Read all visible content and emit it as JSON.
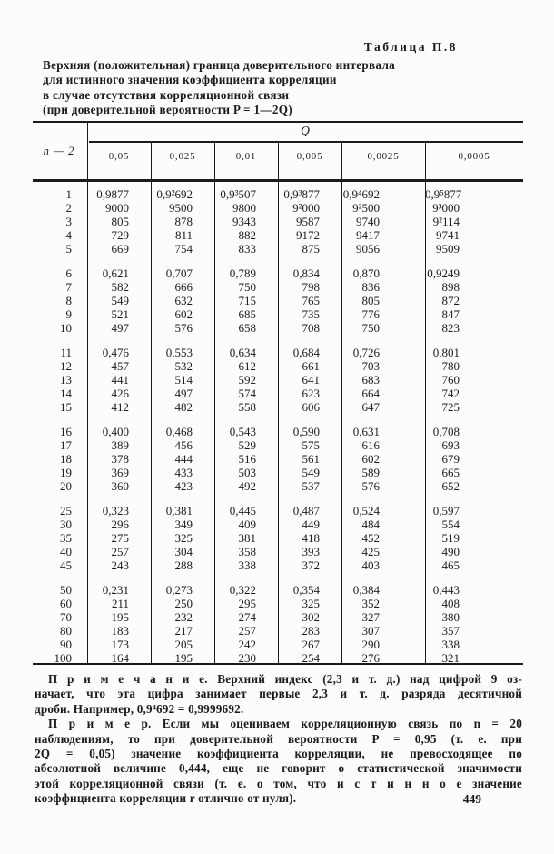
{
  "document": {
    "table_label": "Таблица П.8",
    "caption_lines": [
      "Верхняя (положительная) граница доверительного интервала",
      "для истинного значения коэффициента корреляции",
      "в случае отсутствия корреляционной связи",
      "(при доверительной вероятности P = 1—2Q)"
    ],
    "page_number": "449"
  },
  "table": {
    "row_header_label": "n — 2",
    "q_header": "Q",
    "column_headers": [
      "0,05",
      "0,025",
      "0,01",
      "0,005",
      "0,0025",
      "0,0005"
    ],
    "row_groups": [
      {
        "rows": [
          [
            "1",
            "0,9877",
            "0,9²692",
            "0,9³507",
            "0,9³877",
            "0,9⁴692",
            "0,9⁵877"
          ],
          [
            "2",
            "9000",
            "9500",
            "9800",
            "9²000",
            "9²500",
            "9³000"
          ],
          [
            "3",
            "805",
            "878",
            "9343",
            "9587",
            "9740",
            "9²114"
          ],
          [
            "4",
            "729",
            "811",
            "882",
            "9172",
            "9417",
            "9741"
          ],
          [
            "5",
            "669",
            "754",
            "833",
            "875",
            "9056",
            "9509"
          ]
        ]
      },
      {
        "rows": [
          [
            "6",
            "0,621",
            "0,707",
            "0,789",
            "0,834",
            "0,870",
            "0,9249"
          ],
          [
            "7",
            "582",
            "666",
            "750",
            "798",
            "836",
            "898"
          ],
          [
            "8",
            "549",
            "632",
            "715",
            "765",
            "805",
            "872"
          ],
          [
            "9",
            "521",
            "602",
            "685",
            "735",
            "776",
            "847"
          ],
          [
            "10",
            "497",
            "576",
            "658",
            "708",
            "750",
            "823"
          ]
        ]
      },
      {
        "rows": [
          [
            "11",
            "0,476",
            "0,553",
            "0,634",
            "0,684",
            "0,726",
            "0,801"
          ],
          [
            "12",
            "457",
            "532",
            "612",
            "661",
            "703",
            "780"
          ],
          [
            "13",
            "441",
            "514",
            "592",
            "641",
            "683",
            "760"
          ],
          [
            "14",
            "426",
            "497",
            "574",
            "623",
            "664",
            "742"
          ],
          [
            "15",
            "412",
            "482",
            "558",
            "606",
            "647",
            "725"
          ]
        ]
      },
      {
        "rows": [
          [
            "16",
            "0,400",
            "0,468",
            "0,543",
            "0,590",
            "0,631",
            "0,708"
          ],
          [
            "17",
            "389",
            "456",
            "529",
            "575",
            "616",
            "693"
          ],
          [
            "18",
            "378",
            "444",
            "516",
            "561",
            "602",
            "679"
          ],
          [
            "19",
            "369",
            "433",
            "503",
            "549",
            "589",
            "665"
          ],
          [
            "20",
            "360",
            "423",
            "492",
            "537",
            "576",
            "652"
          ]
        ]
      },
      {
        "rows": [
          [
            "25",
            "0,323",
            "0,381",
            "0,445",
            "0,487",
            "0,524",
            "0,597"
          ],
          [
            "30",
            "296",
            "349",
            "409",
            "449",
            "484",
            "554"
          ],
          [
            "35",
            "275",
            "325",
            "381",
            "418",
            "452",
            "519"
          ],
          [
            "40",
            "257",
            "304",
            "358",
            "393",
            "425",
            "490"
          ],
          [
            "45",
            "243",
            "288",
            "338",
            "372",
            "403",
            "465"
          ]
        ]
      },
      {
        "rows": [
          [
            "50",
            "0,231",
            "0,273",
            "0,322",
            "0,354",
            "0,384",
            "0,443"
          ],
          [
            "60",
            "211",
            "250",
            "295",
            "325",
            "352",
            "408"
          ],
          [
            "70",
            "195",
            "232",
            "274",
            "302",
            "327",
            "380"
          ],
          [
            "80",
            "183",
            "217",
            "257",
            "283",
            "307",
            "357"
          ],
          [
            "90",
            "173",
            "205",
            "242",
            "267",
            "290",
            "338"
          ],
          [
            "100",
            "164",
            "195",
            "230",
            "254",
            "276",
            "321"
          ]
        ]
      }
    ]
  },
  "notes": {
    "lines": [
      "П р и м е ч а н и е.  Верхний индекс (2,3 и т. д.) над цифрой 9 оз-",
      "начает, что эта цифра занимает первые 2,3 и т. д. разряда десятичной",
      "дроби.  Например,  0,9⁴692 = 0,9999692.",
      "П р и м е р.  Если мы оцениваем корреляционную связь по n = 20",
      "наблюдениям, то при доверительной вероятности P = 0,95 (т. е. при",
      "2Q = 0,05) значение коэффициента корреляции, не превосходящее по",
      "абсолютной величине 0,444, еще не говорит о статистической значимости",
      "этой корреляционной связи (т. е. о том, что и с т и н н о е значение",
      "коэффициента корреляции r отлично от нуля)."
    ]
  },
  "colors": {
    "ink": "#1b1b1b",
    "paper": "#fcfcfa"
  }
}
